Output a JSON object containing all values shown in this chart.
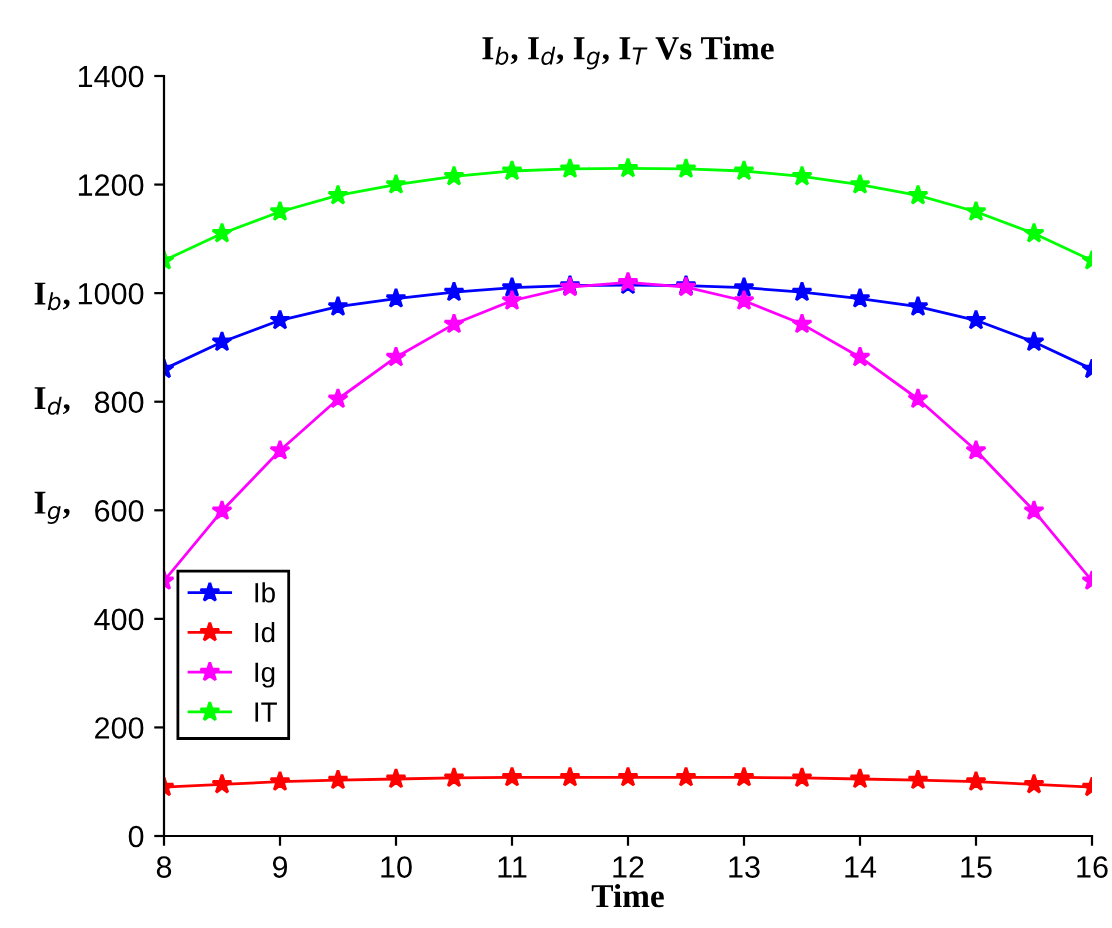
{
  "chart_data": {
    "type": "line",
    "title": "I$_{b}$, I$_{d}$, I$_{g}$, I$_{T}$ Vs Time",
    "xlabel": "Time",
    "ylabel": "I$_{b}$,\n\n\nI$_{d}$,\n\n\nI$_{g}$,",
    "x": [
      8,
      8.5,
      9,
      9.5,
      10,
      10.5,
      11,
      11.5,
      12,
      12.5,
      13,
      13.5,
      14,
      14.5,
      15,
      15.5,
      16
    ],
    "series": [
      {
        "name": "Ib",
        "color": "#0000ff",
        "values": [
          860,
          910,
          950,
          975,
          990,
          1002,
          1010,
          1014,
          1015,
          1014,
          1010,
          1002,
          990,
          975,
          950,
          910,
          860
        ]
      },
      {
        "name": "Id",
        "color": "#ff0000",
        "values": [
          90,
          95,
          100,
          103,
          105,
          107,
          108,
          108,
          108,
          108,
          108,
          107,
          105,
          103,
          100,
          95,
          90
        ]
      },
      {
        "name": "Ig",
        "color": "#ff00ff",
        "values": [
          470,
          599,
          710,
          805,
          882,
          943,
          986,
          1011,
          1020,
          1011,
          986,
          943,
          882,
          805,
          710,
          599,
          470
        ]
      },
      {
        "name": "IT",
        "color": "#00ff00",
        "values": [
          1060,
          1110,
          1150,
          1180,
          1200,
          1215,
          1225,
          1229,
          1230,
          1229,
          1225,
          1215,
          1200,
          1180,
          1150,
          1110,
          1060
        ]
      }
    ],
    "xlim": [
      8,
      16
    ],
    "xticks": [
      8,
      9,
      10,
      11,
      12,
      13,
      14,
      15,
      16
    ],
    "ylim": [
      0,
      1400
    ],
    "yticks": [
      0,
      200,
      400,
      600,
      800,
      1000,
      1200,
      1400
    ],
    "marker": "star",
    "grid": false,
    "legend": "left"
  }
}
